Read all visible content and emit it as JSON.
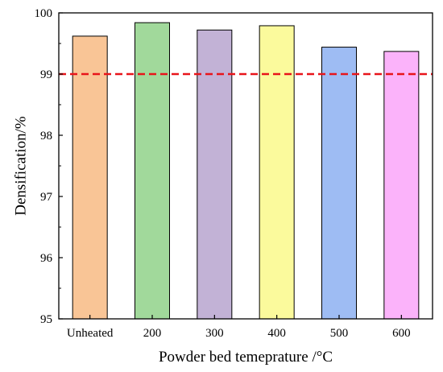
{
  "chart_data": {
    "type": "bar",
    "title": "",
    "xlabel": "Powder bed temeprature /°C",
    "ylabel": "Densification/%",
    "categories": [
      "Unheated",
      "200",
      "300",
      "400",
      "500",
      "600"
    ],
    "values": [
      99.62,
      99.84,
      99.72,
      99.79,
      99.44,
      99.37
    ],
    "colors": [
      "#f9c596",
      "#a1d99b",
      "#c2b2d6",
      "#fbfa9c",
      "#9ebcf3",
      "#fbb3fa"
    ],
    "ylim": [
      95,
      100
    ],
    "yticks": [
      "95",
      "96",
      "97",
      "98",
      "99",
      "100"
    ],
    "reference_line": {
      "value": 99,
      "color": "#e8141a",
      "style": "dashed"
    },
    "grid": false,
    "legend": "none"
  }
}
